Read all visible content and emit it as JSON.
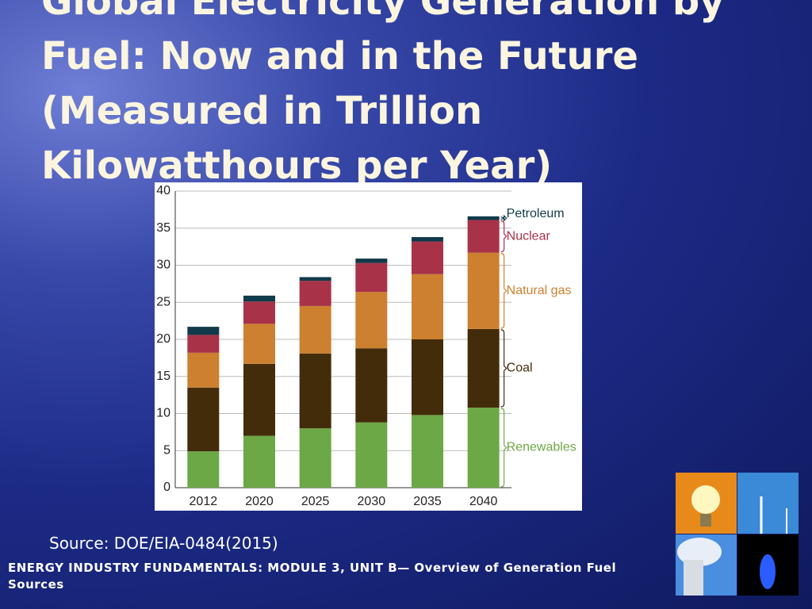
{
  "chart_data": {
    "type": "stacked-bar",
    "title": "Global Electricity Generation by Fuel: Now and in the Future (Measured in Trillion Kilowatthours per Year)",
    "categories": [
      "2012",
      "2020",
      "2025",
      "2030",
      "2035",
      "2040"
    ],
    "series": [
      {
        "name": "Renewables",
        "color": "#6ca846",
        "values": [
          4.9,
          7.0,
          8.0,
          8.8,
          9.8,
          10.8
        ]
      },
      {
        "name": "Coal",
        "color": "#432c0a",
        "values": [
          8.6,
          9.7,
          10.1,
          10.0,
          10.2,
          10.6
        ]
      },
      {
        "name": "Natural gas",
        "color": "#cc8030",
        "values": [
          4.7,
          5.4,
          6.4,
          7.6,
          8.8,
          10.3
        ]
      },
      {
        "name": "Nuclear",
        "color": "#a83248",
        "values": [
          2.4,
          3.0,
          3.4,
          3.9,
          4.4,
          4.4
        ]
      },
      {
        "name": "Petroleum",
        "color": "#113a4a",
        "values": [
          1.1,
          0.8,
          0.5,
          0.6,
          0.6,
          0.5
        ]
      }
    ],
    "ylim": [
      0,
      40
    ],
    "yticks": [
      0,
      5,
      10,
      15,
      20,
      25,
      30,
      35,
      40
    ],
    "grid": true
  },
  "source": "Source: DOE/EIA-0484(2015)",
  "footer": "ENERGY INDUSTRY FUNDAMENTALS:  MODULE 3, UNIT B— Overview of Generation Fuel Sources"
}
